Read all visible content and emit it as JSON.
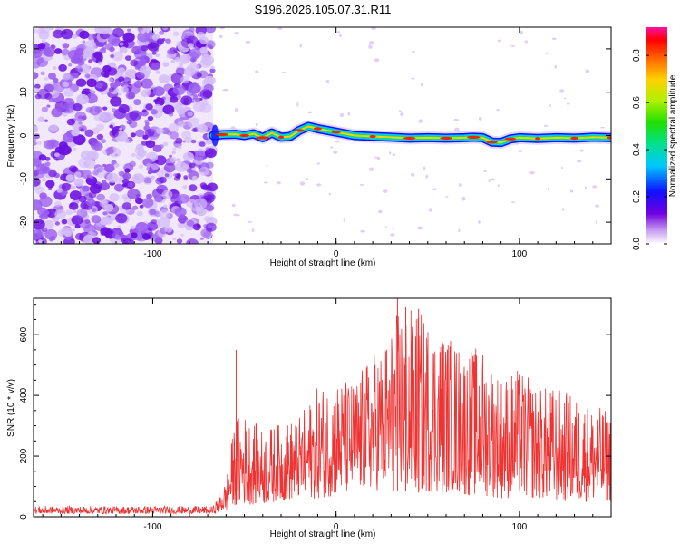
{
  "title": "S196.2026.105.07.31.R11",
  "chart_data": [
    {
      "type": "heatmap",
      "name": "spectrogram",
      "xlabel": "Height of straight line (km)",
      "ylabel": "Frequency (Hz)",
      "xlim": [
        -165,
        150
      ],
      "ylim": [
        -25,
        25
      ],
      "xticks": [
        -100,
        0,
        100
      ],
      "xtick_labels": [
        "-100",
        "0",
        "100"
      ],
      "yticks": [
        -20,
        -10,
        0,
        10,
        20
      ],
      "ytick_labels": [
        "-20",
        "-10",
        "0",
        "10",
        "20"
      ],
      "noise_region_end_km": -67,
      "signal_start_km": -67,
      "track": {
        "x": [
          -67,
          -62,
          -55,
          -50,
          -45,
          -40,
          -35,
          -30,
          -25,
          -20,
          -15,
          -10,
          -5,
          0,
          10,
          20,
          30,
          40,
          50,
          60,
          70,
          75,
          80,
          85,
          90,
          95,
          100,
          110,
          120,
          130,
          140,
          150
        ],
        "y": [
          0.0,
          0.2,
          0.3,
          0.0,
          0.4,
          -0.5,
          0.6,
          -0.4,
          -0.2,
          1.2,
          2.1,
          1.6,
          1.2,
          0.8,
          0.0,
          -0.2,
          -0.4,
          -0.6,
          -0.5,
          -0.6,
          -0.5,
          -0.4,
          -0.5,
          -1.5,
          -1.6,
          -0.8,
          -0.5,
          -0.7,
          -0.5,
          -0.6,
          -0.4,
          -0.5
        ]
      },
      "colorbar": {
        "label": "Normalized spectral amplitude",
        "range": [
          0,
          0.92
        ],
        "ticks": [
          0.0,
          0.2,
          0.4,
          0.6,
          0.8
        ],
        "tick_labels": [
          "0.0",
          "0.2",
          "0.4",
          "0.6",
          "0.8"
        ]
      }
    },
    {
      "type": "line",
      "name": "snr",
      "xlabel": "Height of straight line (km)",
      "ylabel": "SNR (10 * v/v)",
      "xlim": [
        -165,
        150
      ],
      "ylim": [
        0,
        720
      ],
      "xticks": [
        -100,
        0,
        100
      ],
      "xtick_labels": [
        "-100",
        "0",
        "100"
      ],
      "yticks": [
        0,
        200,
        400,
        600
      ],
      "ytick_labels": [
        "0",
        "200",
        "400",
        "600"
      ],
      "color": "#ee3333",
      "envelope": {
        "x": [
          -165,
          -100,
          -67,
          -60,
          -55,
          -50,
          -40,
          -30,
          -20,
          -10,
          0,
          10,
          20,
          30,
          35,
          40,
          45,
          50,
          60,
          70,
          80,
          90,
          100,
          110,
          120,
          130,
          140,
          150
        ],
        "max": [
          35,
          35,
          35,
          120,
          330,
          340,
          290,
          310,
          330,
          430,
          460,
          450,
          540,
          620,
          710,
          690,
          680,
          660,
          610,
          560,
          560,
          470,
          490,
          430,
          430,
          400,
          370,
          350
        ],
        "min": [
          10,
          10,
          10,
          20,
          40,
          40,
          40,
          50,
          60,
          60,
          70,
          80,
          90,
          80,
          90,
          80,
          80,
          80,
          80,
          70,
          70,
          60,
          60,
          60,
          50,
          50,
          50,
          50
        ]
      },
      "spikes": [
        {
          "x": -54.5,
          "y": 550
        },
        {
          "x": 33.5,
          "y": 720
        },
        {
          "x": 45,
          "y": 685
        },
        {
          "x": 38,
          "y": 690
        }
      ]
    }
  ]
}
